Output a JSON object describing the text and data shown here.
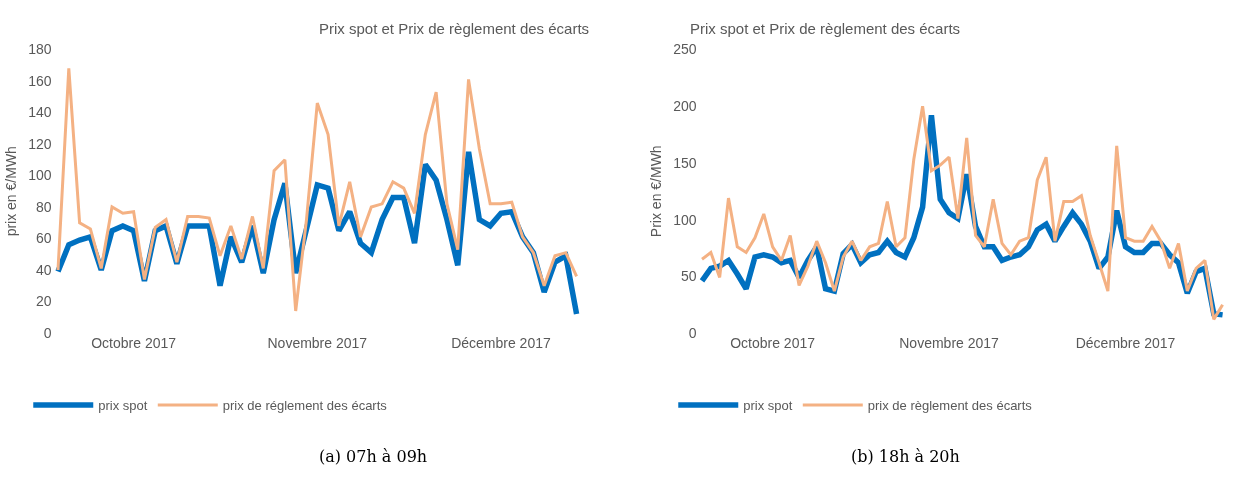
{
  "chart_data": [
    {
      "type": "line",
      "title": "Prix spot et Prix de règlement des écarts",
      "ylabel": "prix en €/MWh",
      "categories": [
        null,
        null,
        null,
        null,
        null,
        null,
        null,
        "Octobre 2017",
        null,
        null,
        null,
        null,
        null,
        null,
        null,
        null,
        null,
        null,
        null,
        null,
        null,
        null,
        null,
        null,
        "Novembre 2017",
        null,
        null,
        null,
        null,
        null,
        null,
        null,
        null,
        null,
        null,
        null,
        null,
        null,
        null,
        null,
        null,
        "Décembre 2017",
        null,
        null,
        null,
        null,
        null,
        null,
        null
      ],
      "series": [
        {
          "name": "prix spot",
          "color": "#0070c0",
          "values": [
            39,
            56,
            59,
            61,
            40,
            65,
            68,
            65,
            33,
            65,
            68,
            44,
            68,
            68,
            68,
            30,
            61,
            45,
            68,
            38,
            72,
            95,
            38,
            66,
            94,
            92,
            65,
            77,
            57,
            51,
            72,
            86,
            86,
            57,
            107,
            97,
            72,
            43,
            115,
            72,
            68,
            76,
            77,
            61,
            51,
            26,
            45,
            49,
            12
          ]
        },
        {
          "name": "prix de réglement des écarts",
          "color": "#f4b183",
          "values": [
            40,
            168,
            70,
            66,
            41,
            80,
            76,
            77,
            34,
            67,
            72,
            45,
            74,
            74,
            73,
            49,
            68,
            47,
            74,
            41,
            103,
            110,
            14,
            72,
            146,
            126,
            68,
            96,
            61,
            80,
            82,
            96,
            92,
            76,
            126,
            153,
            82,
            53,
            161,
            117,
            82,
            82,
            83,
            61,
            51,
            30,
            49,
            51,
            36
          ]
        }
      ],
      "ylim": [
        0,
        180
      ],
      "yticks": [
        0,
        20,
        40,
        60,
        80,
        100,
        120,
        140,
        160,
        180
      ],
      "legend": "bottom",
      "marker": "none",
      "line_style": "solid",
      "annotations": [
        "(a) 07h à 09h"
      ]
    },
    {
      "type": "line",
      "title": "Prix spot et Prix de règlement des écarts",
      "ylabel": "Prix en €/MWh",
      "categories": [
        null,
        null,
        null,
        null,
        null,
        null,
        null,
        null,
        "Octobre 2017",
        null,
        null,
        null,
        null,
        null,
        null,
        null,
        null,
        null,
        null,
        null,
        null,
        null,
        null,
        null,
        null,
        null,
        null,
        null,
        "Novembre 2017",
        null,
        null,
        null,
        null,
        null,
        null,
        null,
        null,
        null,
        null,
        null,
        null,
        null,
        null,
        null,
        null,
        null,
        null,
        null,
        "Décembre 2017",
        null,
        null,
        null,
        null,
        null,
        null,
        null,
        null,
        null,
        null,
        null
      ],
      "series": [
        {
          "name": "prix spot",
          "color": "#0070c0",
          "values": [
            46,
            57,
            59,
            64,
            52,
            39,
            67,
            69,
            67,
            62,
            64,
            49,
            64,
            76,
            39,
            37,
            70,
            78,
            62,
            69,
            71,
            81,
            71,
            67,
            84,
            111,
            192,
            118,
            106,
            101,
            140,
            94,
            76,
            76,
            64,
            67,
            69,
            76,
            91,
            96,
            81,
            94,
            106,
            96,
            81,
            57,
            67,
            108,
            76,
            71,
            71,
            79,
            79,
            69,
            62,
            35,
            54,
            57,
            17,
            16
          ]
        },
        {
          "name": "prix de règlement des écarts",
          "color": "#f4b183",
          "values": [
            65,
            71,
            49,
            119,
            76,
            71,
            84,
            105,
            76,
            64,
            86,
            42,
            59,
            81,
            62,
            37,
            67,
            81,
            64,
            76,
            79,
            116,
            76,
            84,
            153,
            200,
            143,
            148,
            155,
            101,
            172,
            86,
            76,
            118,
            79,
            69,
            81,
            84,
            135,
            155,
            81,
            116,
            116,
            121,
            86,
            62,
            37,
            165,
            84,
            81,
            81,
            94,
            81,
            57,
            79,
            37,
            57,
            64,
            12,
            25
          ]
        }
      ],
      "ylim": [
        0,
        250
      ],
      "yticks": [
        0,
        50,
        100,
        150,
        200,
        250
      ],
      "legend": "bottom",
      "marker": "none",
      "line_style": "solid",
      "annotations": [
        "(b) 18h à 20h"
      ]
    }
  ]
}
